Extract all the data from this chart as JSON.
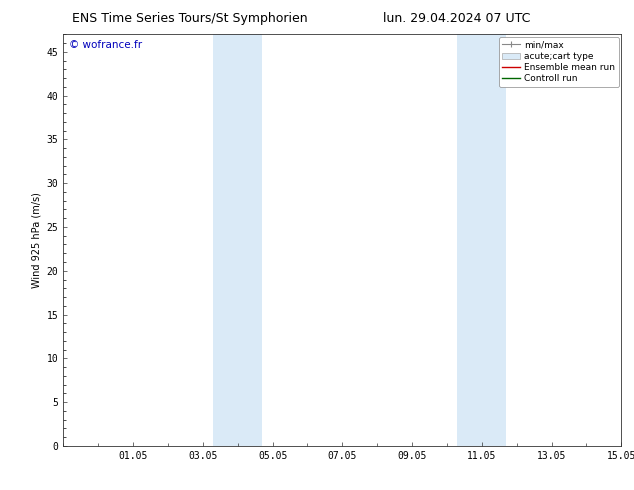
{
  "title_left": "ENS Time Series Tours/St Symphorien",
  "title_right": "lun. 29.04.2024 07 UTC",
  "ylabel": "Wind 925 hPa (m/s)",
  "watermark": "© wofrance.fr",
  "ymin": 0,
  "ymax": 47,
  "yticks": [
    0,
    5,
    10,
    15,
    20,
    25,
    30,
    35,
    40,
    45
  ],
  "xtick_labels": [
    "01.05",
    "03.05",
    "05.05",
    "07.05",
    "09.05",
    "11.05",
    "13.05",
    "15.05"
  ],
  "shaded_color": "#daeaf7",
  "background_color": "#ffffff",
  "plot_bg_color": "#ffffff",
  "legend_entries": [
    {
      "label": "min/max",
      "color": "#aaaaaa",
      "style": "minmax"
    },
    {
      "label": "acute;cart type",
      "color": "#daeaf7",
      "style": "band"
    },
    {
      "label": "Ensemble mean run",
      "color": "#cc0000",
      "style": "line"
    },
    {
      "label": "Controll run",
      "color": "#006600",
      "style": "line"
    }
  ],
  "title_fontsize": 9,
  "axis_fontsize": 7,
  "watermark_color": "#0000bb",
  "watermark_fontsize": 7.5,
  "spine_color": "#333333",
  "tick_color": "#333333"
}
